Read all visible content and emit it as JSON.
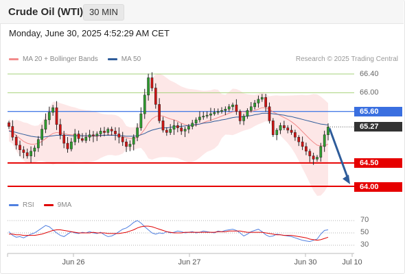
{
  "header": {
    "title": "Crude Oil (WTI)",
    "timeframe": "30 MIN",
    "datetime": "Monday, June 30, 2025 4:52:29 AM CET"
  },
  "legend": {
    "ma20_label": "MA 20 + Bollinger Bands",
    "ma50_label": "MA 50",
    "ma20_color": "#f28b8b",
    "ma50_color": "#2e5c9a"
  },
  "credit": "Research © 2025 Trading Central",
  "rsi_legend": {
    "rsi_label": "RSI",
    "ma_label": "9MA",
    "rsi_color": "#4f7fe0",
    "ma_color": "#e00000"
  },
  "price_labels": [
    {
      "text": "66.40",
      "value": 66.4,
      "style": "green"
    },
    {
      "text": "66.00",
      "value": 66.0,
      "style": "green"
    },
    {
      "text": "65.60",
      "value": 65.6,
      "style": "blue"
    },
    {
      "text": "65.27",
      "value": 65.27,
      "style": "dark"
    },
    {
      "text": "64.50",
      "value": 64.5,
      "style": "red"
    },
    {
      "text": "64.00",
      "value": 64.0,
      "style": "red"
    }
  ],
  "rsi_ticks": [
    "70",
    "50",
    "30"
  ],
  "x_ticks": [
    "Jun 26",
    "Jun 27",
    "Jun 30",
    "Jul 10"
  ],
  "chart_data": [
    {
      "type": "candlestick",
      "title": "Crude Oil (WTI)",
      "interval": "30 MIN",
      "ylim": [
        63.9,
        66.5
      ],
      "candle_count": 88,
      "horizontal_levels": [
        {
          "value": 66.4,
          "kind": "resistance-green"
        },
        {
          "value": 66.0,
          "kind": "resistance-green"
        },
        {
          "value": 65.6,
          "kind": "pivot-blue"
        },
        {
          "value": 64.5,
          "kind": "support-red"
        },
        {
          "value": 64.0,
          "kind": "support-red"
        }
      ],
      "last_price": 65.27,
      "forecast_arrow": {
        "from": 65.27,
        "to": 64.0,
        "direction": "down"
      },
      "closes": [
        65.28,
        65.05,
        64.88,
        64.78,
        64.72,
        64.65,
        64.75,
        64.82,
        65.0,
        65.22,
        65.42,
        65.58,
        65.68,
        65.32,
        65.1,
        64.92,
        64.8,
        64.95,
        65.12,
        65.02,
        64.98,
        65.05,
        65.1,
        65.08,
        65.12,
        65.18,
        65.15,
        65.22,
        65.18,
        65.12,
        65.05,
        64.95,
        64.85,
        64.9,
        65.05,
        65.25,
        65.55,
        65.95,
        66.32,
        66.1,
        65.75,
        65.4,
        65.2,
        65.15,
        65.22,
        65.3,
        65.25,
        65.18,
        65.22,
        65.28,
        65.35,
        65.42,
        65.48,
        65.5,
        65.52,
        65.55,
        65.58,
        65.6,
        65.62,
        65.65,
        65.7,
        65.74,
        65.6,
        65.4,
        65.5,
        65.62,
        65.7,
        65.78,
        65.86,
        65.9,
        65.7,
        65.4,
        65.1,
        65.2,
        65.3,
        65.25,
        65.2,
        65.15,
        65.05,
        64.95,
        64.85,
        64.75,
        64.65,
        64.58,
        64.62,
        64.85,
        65.1,
        65.27
      ],
      "ma20": [
        65.2,
        65.15,
        65.09,
        65.02,
        64.96,
        64.92,
        64.9,
        64.9,
        64.92,
        64.96,
        65.02,
        65.08,
        65.13,
        65.15,
        65.14,
        65.13,
        65.11,
        65.1,
        65.1,
        65.09,
        65.08,
        65.07,
        65.07,
        65.07,
        65.07,
        65.08,
        65.09,
        65.1,
        65.1,
        65.09,
        65.08,
        65.06,
        65.04,
        65.02,
        65.02,
        65.05,
        65.12,
        65.22,
        65.35,
        65.44,
        65.49,
        65.51,
        65.5,
        65.47,
        65.44,
        65.42,
        65.39,
        65.35,
        65.32,
        65.3,
        65.3,
        65.31,
        65.33,
        65.36,
        65.39,
        65.41,
        65.44,
        65.47,
        65.5,
        65.53,
        65.56,
        65.59,
        65.6,
        65.6,
        65.59,
        65.59,
        65.6,
        65.62,
        65.65,
        65.68,
        65.68,
        65.65,
        65.59,
        65.55,
        65.51,
        65.47,
        65.43,
        65.38,
        65.32,
        65.25,
        65.17,
        65.09,
        65.01,
        64.94,
        64.88,
        64.86,
        64.87,
        64.9
      ],
      "ma50": [
        65.18,
        65.17,
        65.15,
        65.13,
        65.11,
        65.09,
        65.07,
        65.06,
        65.05,
        65.05,
        65.06,
        65.07,
        65.08,
        65.09,
        65.09,
        65.09,
        65.09,
        65.08,
        65.08,
        65.08,
        65.08,
        65.08,
        65.08,
        65.08,
        65.08,
        65.09,
        65.09,
        65.09,
        65.09,
        65.09,
        65.08,
        65.08,
        65.07,
        65.07,
        65.07,
        65.08,
        65.1,
        65.13,
        65.17,
        65.2,
        65.22,
        65.24,
        65.25,
        65.25,
        65.26,
        65.27,
        65.28,
        65.28,
        65.29,
        65.3,
        65.31,
        65.32,
        65.33,
        65.35,
        65.36,
        65.37,
        65.39,
        65.4,
        65.42,
        65.43,
        65.45,
        65.47,
        65.48,
        65.48,
        65.49,
        65.5,
        65.51,
        65.53,
        65.54,
        65.56,
        65.56,
        65.56,
        65.55,
        65.54,
        65.53,
        65.52,
        65.5,
        65.49,
        65.47,
        65.45,
        65.43,
        65.41,
        65.39,
        65.37,
        65.35,
        65.33,
        65.32,
        65.31
      ]
    },
    {
      "type": "line",
      "title": "RSI",
      "ylim": [
        25,
        75
      ],
      "ticks": [
        30,
        50,
        70
      ],
      "series": [
        {
          "name": "RSI",
          "values": [
            52,
            46,
            43,
            44,
            42,
            45,
            48,
            50,
            54,
            58,
            62,
            60,
            55,
            50,
            46,
            44,
            48,
            52,
            50,
            49,
            51,
            50,
            52,
            50,
            49,
            51,
            47,
            44,
            45,
            48,
            52,
            56,
            58,
            62,
            67,
            70,
            66,
            60,
            55,
            50,
            48,
            50,
            49,
            52,
            50,
            51,
            53,
            52,
            50,
            51,
            52,
            50,
            51,
            53,
            52,
            51,
            50,
            53,
            52,
            54,
            55,
            56,
            54,
            50,
            45,
            48,
            52,
            54,
            56,
            52,
            47,
            44,
            45,
            48,
            47,
            46,
            45,
            44,
            42,
            40,
            38,
            37,
            36,
            38,
            40,
            48,
            54,
            55
          ]
        },
        {
          "name": "9MA",
          "values": [
            48,
            48,
            47,
            47,
            46,
            46,
            46,
            46,
            47,
            48,
            50,
            52,
            54,
            55,
            55,
            54,
            53,
            52,
            51,
            50,
            50,
            50,
            50,
            51,
            50,
            50,
            50,
            49,
            49,
            49,
            49,
            50,
            51,
            53,
            55,
            58,
            60,
            61,
            61,
            60,
            58,
            56,
            54,
            52,
            51,
            50,
            50,
            50,
            51,
            51,
            51,
            51,
            51,
            51,
            51,
            51,
            51,
            52,
            52,
            52,
            53,
            53,
            53,
            53,
            52,
            51,
            51,
            51,
            51,
            51,
            50,
            49,
            48,
            47,
            47,
            46,
            46,
            46,
            45,
            44,
            43,
            42,
            40,
            39,
            38,
            39,
            41,
            43
          ]
        }
      ]
    }
  ]
}
